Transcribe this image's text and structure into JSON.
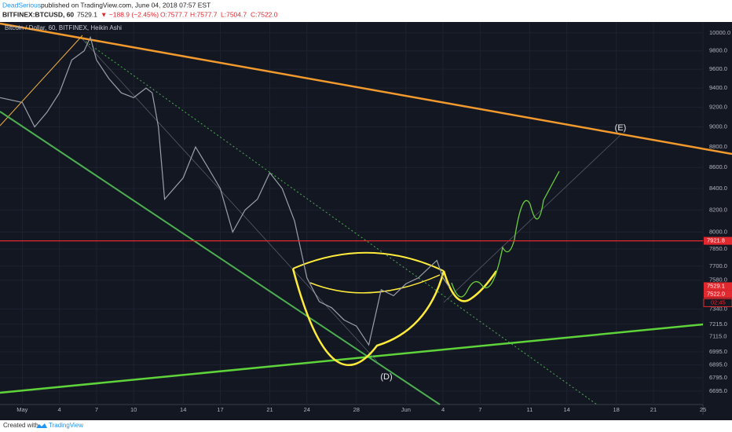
{
  "header": {
    "author": "DeadSerious",
    "published": "published on TradingView.com, June 04, 2018 07:57 EST",
    "symbol": "BITFINEX:BTCUSD, 60",
    "last": 7529.1,
    "change": "▼ −188.9 (−2.45%)",
    "open": "O:7577.7",
    "high": "H:7577.7",
    "low": "L:7504.7",
    "close": "C:7522.0"
  },
  "chart_data": {
    "type": "line",
    "title": "Bitcoin / Dollar, 60, BITFINEX, Heikin Ashi",
    "log_scale": true,
    "grid": true,
    "series": [
      {
        "name": "BTCUSD",
        "color": "#9aa0aa",
        "x": [
          -1.8,
          0,
          1,
          2,
          3,
          4,
          5,
          5.5,
          6,
          7,
          8,
          9,
          10,
          10.5,
          11,
          11.5,
          13,
          14,
          15,
          16,
          17,
          18,
          19,
          20,
          21,
          22,
          23,
          24,
          25,
          26,
          27,
          28,
          29,
          30,
          31,
          32,
          33,
          33.5,
          34,
          34.5
        ],
        "values": [
          9300,
          9250,
          9000,
          9150,
          9350,
          9700,
          9800,
          9950,
          9700,
          9500,
          9350,
          9300,
          9400,
          9350,
          9000,
          8300,
          8500,
          8800,
          8600,
          8400,
          8000,
          8200,
          8300,
          8550,
          8400,
          8100,
          7600,
          7400,
          7350,
          7250,
          7200,
          7050,
          7500,
          7450,
          7550,
          7600,
          7700,
          7750,
          7600,
          7522
        ]
      }
    ],
    "xlim": [
      -1.8,
      55
    ],
    "ylim": [
      6595,
      10122
    ],
    "xticks": [
      {
        "value": 0,
        "label": "May"
      },
      {
        "value": 3,
        "label": "4"
      },
      {
        "value": 6,
        "label": "7"
      },
      {
        "value": 9,
        "label": "10"
      },
      {
        "value": 13,
        "label": "14"
      },
      {
        "value": 16,
        "label": "17"
      },
      {
        "value": 20,
        "label": "21"
      },
      {
        "value": 23,
        "label": "24"
      },
      {
        "value": 27,
        "label": "28"
      },
      {
        "value": 31,
        "label": "Jun"
      },
      {
        "value": 34,
        "label": "4"
      },
      {
        "value": 37,
        "label": "7"
      },
      {
        "value": 41,
        "label": "11"
      },
      {
        "value": 44,
        "label": "14"
      },
      {
        "value": 48,
        "label": "18"
      },
      {
        "value": 51,
        "label": "21"
      },
      {
        "value": 55,
        "label": "25"
      }
    ],
    "yticks": [
      {
        "value": 10000,
        "label": "10000.0"
      },
      {
        "value": 9800,
        "label": "9800.0"
      },
      {
        "value": 9600,
        "label": "9600.0"
      },
      {
        "value": 9400,
        "label": "9400.0"
      },
      {
        "value": 9200,
        "label": "9200.0"
      },
      {
        "value": 9000,
        "label": "9000.0"
      },
      {
        "value": 8800,
        "label": "8800.0"
      },
      {
        "value": 8600,
        "label": "8600.0"
      },
      {
        "value": 8400,
        "label": "8400.0"
      },
      {
        "value": 8200,
        "label": "8200.0"
      },
      {
        "value": 8000,
        "label": "8000.0"
      },
      {
        "value": 7850,
        "label": "7850.0"
      },
      {
        "value": 7700,
        "label": "7700.0"
      },
      {
        "value": 7580,
        "label": "7580.0"
      },
      {
        "value": 7340,
        "label": "7340.0"
      },
      {
        "value": 7215,
        "label": "7215.0"
      },
      {
        "value": 7115,
        "label": "7115.0"
      },
      {
        "value": 6995,
        "label": "6995.0"
      },
      {
        "value": 6895,
        "label": "6895.0"
      },
      {
        "value": 6795,
        "label": "6795.0"
      },
      {
        "value": 6695,
        "label": "6695.0"
      }
    ],
    "resistance": {
      "value": 7921.8,
      "color": "#e0282e"
    },
    "price_labels": [
      7529.1,
      {
        "value": 7522,
        "label": "7522.0"
      }
    ],
    "countdown": "02:45",
    "annotations": [
      "(E)",
      "(D)"
    ]
  },
  "footer": {
    "created": "Created with",
    "brand": "TradingView"
  }
}
